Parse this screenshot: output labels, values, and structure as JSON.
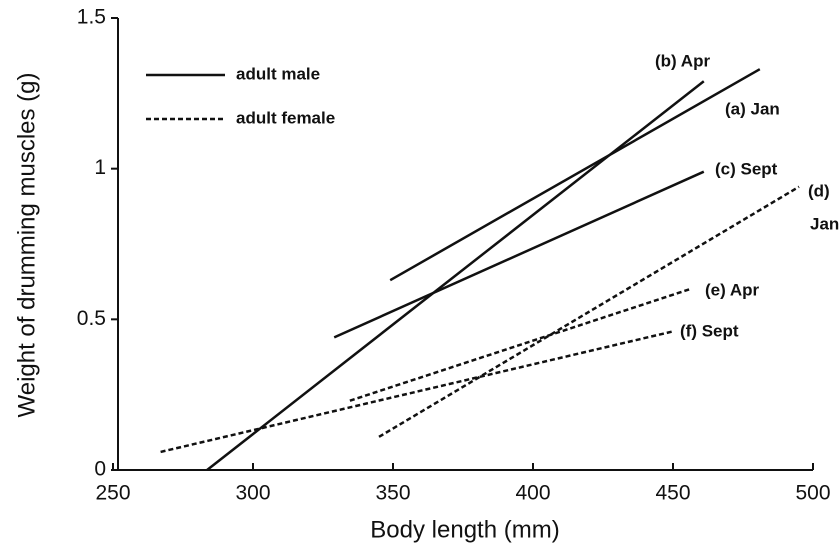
{
  "chart_data": {
    "type": "line",
    "xlabel": "Body length  (mm)",
    "ylabel": "Weight of drumming muscles  (g)",
    "xlim": [
      250,
      500
    ],
    "xticks": [
      250,
      300,
      350,
      400,
      450,
      500
    ],
    "ylim": [
      0,
      1.5
    ],
    "yticks": [
      0,
      0.5,
      1,
      1.5
    ],
    "grid": false,
    "legend_position": "upper left",
    "legend": [
      {
        "name": "adult male",
        "style": "solid"
      },
      {
        "name": "adult female",
        "style": "dashed"
      }
    ],
    "color": "#111111",
    "series": [
      {
        "label": [
          "(a) Jan"
        ],
        "style": "solid",
        "x": [
          349,
          481
        ],
        "values": [
          0.63,
          1.33
        ]
      },
      {
        "label": [
          "(b) Apr"
        ],
        "style": "solid",
        "x": [
          283.6,
          461
        ],
        "values": [
          0,
          1.29
        ]
      },
      {
        "label": [
          "(c) Sept"
        ],
        "style": "solid",
        "x": [
          329,
          461
        ],
        "values": [
          0.44,
          0.99
        ]
      },
      {
        "label": [
          "(d)",
          "Jan"
        ],
        "style": "dashed",
        "x": [
          345,
          495
        ],
        "values": [
          0.11,
          0.94
        ]
      },
      {
        "label": [
          "(e) Apr"
        ],
        "style": "dashed",
        "x": [
          334.6,
          456
        ],
        "values": [
          0.23,
          0.6
        ]
      },
      {
        "label": [
          "(f) Sept"
        ],
        "style": "dashed",
        "x": [
          267,
          450
        ],
        "values": [
          0.06,
          0.46
        ]
      }
    ]
  }
}
